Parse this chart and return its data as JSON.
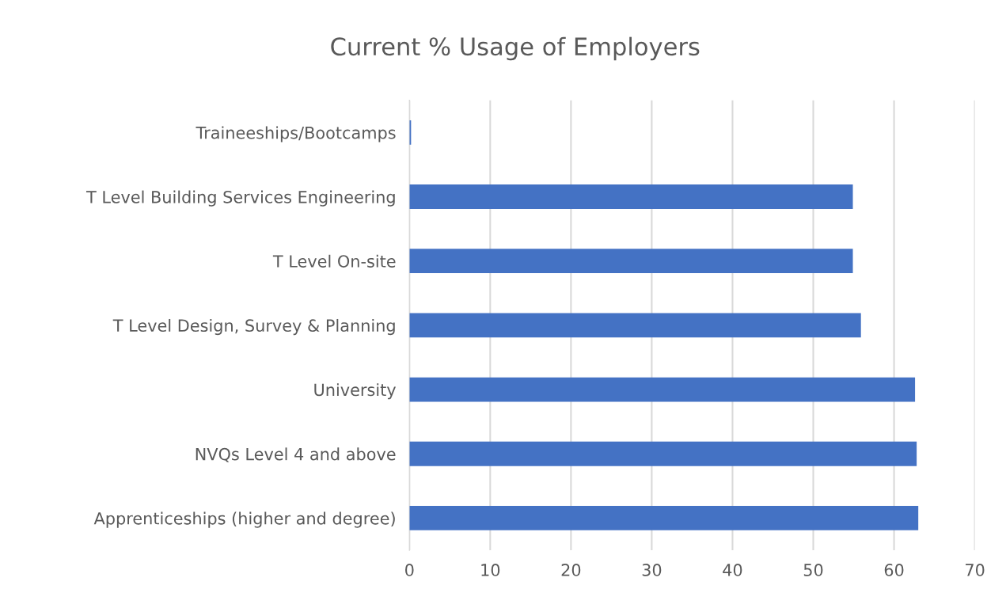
{
  "chart_data": {
    "type": "bar",
    "orientation": "horizontal",
    "title": "Current % Usage of Employers",
    "categories": [
      "Traineeships/Bootcamps",
      "T Level Building Services Engineering",
      "T Level On-site",
      "T Level Design, Survey & Planning",
      "University",
      "NVQs Level 4 and above",
      "Apprenticeships (higher and degree)"
    ],
    "values": [
      0.2,
      54.9,
      54.9,
      55.9,
      62.6,
      62.8,
      63.0
    ],
    "color": "#4472c4",
    "xlim": [
      0,
      70
    ],
    "xticks": [
      0,
      10,
      20,
      30,
      40,
      50,
      60,
      70
    ],
    "grid": "x",
    "legend": false
  }
}
